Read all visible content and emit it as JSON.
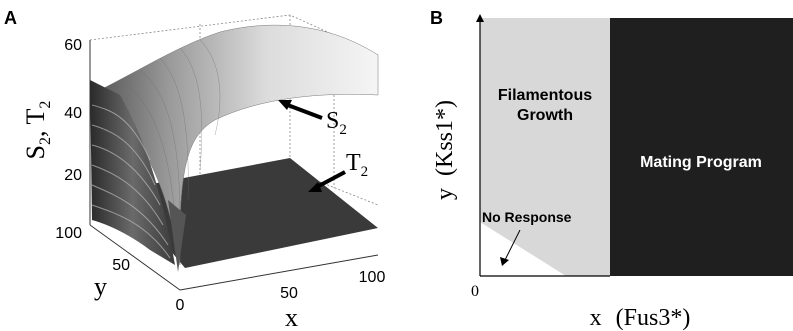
{
  "panel_a": {
    "letter": "A",
    "z_axis_label": "S",
    "z_axis_sub": "2",
    "z_axis_sep": ", ",
    "z_axis_label2": "T",
    "z_axis_sub2": "2",
    "z_ticks": [
      "60",
      "40",
      "20"
    ],
    "y_axis_label": "y",
    "y_ticks": [
      "100",
      "50",
      "0"
    ],
    "x_axis_label": "x",
    "x_ticks": [
      "50",
      "100"
    ],
    "surface_s_label": "S",
    "surface_s_sub": "2",
    "surface_t_label": "T",
    "surface_t_sub": "2"
  },
  "panel_b": {
    "letter": "B",
    "region_filamentous_line1": "Filamentous",
    "region_filamentous_line2": "Growth",
    "region_mating": "Mating Program",
    "region_no_response": "No Response",
    "origin": "0",
    "x_label_var": "x",
    "x_label_name": "(Fus3*)",
    "y_label_var": "y",
    "y_label_name": "(Kss1*)"
  },
  "colors": {
    "filamentous_region": "#d8d8d8",
    "mating_region": "#1f1f1f",
    "t_surface": "#3a3a3a",
    "s_surface_light": "#f2f2f2",
    "s_surface_dark": "#8a8a8a"
  }
}
